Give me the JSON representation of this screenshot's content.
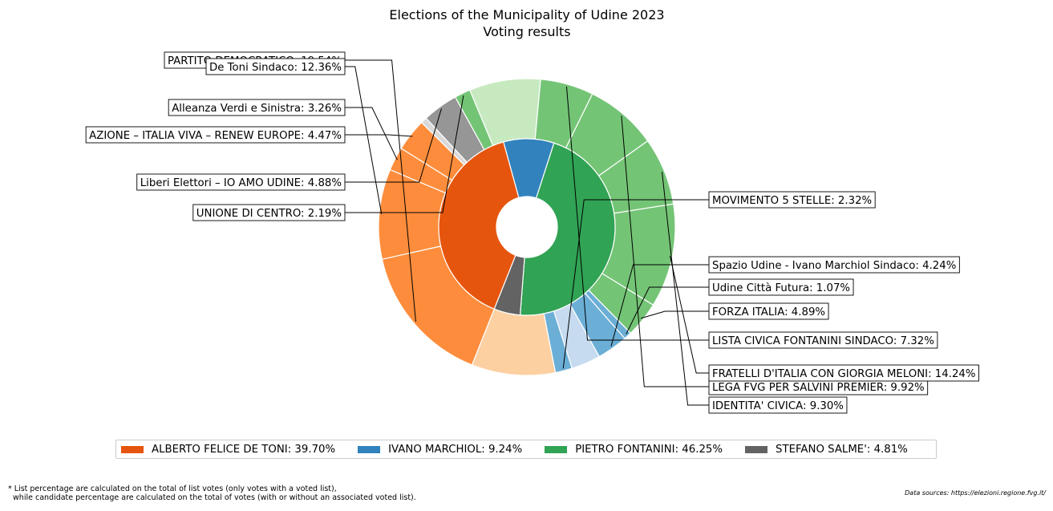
{
  "chart_data": {
    "type": "pie",
    "title": "Elections of the Municipality of Udine 2023",
    "subtitle": "Voting results",
    "inner_ring": [
      {
        "name": "ALBERTO FELICE DE TONI",
        "value": 39.7,
        "legend": "ALBERTO FELICE DE TONI: 39.70%",
        "color": "#e6550d"
      },
      {
        "name": "IVANO MARCHIOL",
        "value": 9.24,
        "legend": "IVANO MARCHIOL: 9.24%",
        "color": "#3182bd"
      },
      {
        "name": "PIETRO FONTANINI",
        "value": 46.25,
        "legend": "PIETRO FONTANINI: 46.25%",
        "color": "#31a354"
      },
      {
        "name": "STEFANO SALME'",
        "value": 4.81,
        "legend": "STEFANO SALME': 4.81%",
        "color": "#636363"
      }
    ],
    "outer_ring": [
      {
        "value": 19.54,
        "color": "#fd8d3c",
        "label": "PARTITO DEMOCRATICO: 19.54%"
      },
      {
        "value": 12.36,
        "color": "#fd8d3c",
        "label": "De Toni Sindaco: 12.36%"
      },
      {
        "value": 3.26,
        "color": "#fd8d3c",
        "label": "Alleanza Verdi e Sinistra: 3.26%"
      },
      {
        "value": 4.47,
        "color": "#fd8d3c",
        "label": "AZIONE – ITALIA VIVA – RENEW EUROPE: 4.47%"
      },
      {
        "value": 0.85,
        "color": "#d9d9d9",
        "label": ""
      },
      {
        "value": 4.88,
        "color": "#969696",
        "label": "Liberi Elettori – IO AMO UDINE: 4.88%"
      },
      {
        "value": 2.19,
        "color": "#74c476",
        "label": "UNIONE DI CENTRO: 2.19%"
      },
      {
        "value": 9.8,
        "color": "#c7e9c0",
        "label": ""
      },
      {
        "value": 7.32,
        "color": "#74c476",
        "label": "LISTA CIVICA FONTANINI SINDACO: 7.32%"
      },
      {
        "value": 9.92,
        "color": "#74c476",
        "label": "LEGA FVG PER SALVINI PREMIER: 9.92%"
      },
      {
        "value": 9.3,
        "color": "#74c476",
        "label": "IDENTITA' CIVICA: 9.30%"
      },
      {
        "value": 14.24,
        "color": "#74c476",
        "label": "FRATELLI D'ITALIA CON GIORGIA MELONI: 14.24%"
      },
      {
        "value": 4.89,
        "color": "#74c476",
        "label": "FORZA ITALIA: 4.89%"
      },
      {
        "value": 1.07,
        "color": "#6baed6",
        "label": "Udine Città Futura: 1.07%"
      },
      {
        "value": 4.24,
        "color": "#6baed6",
        "label": "Spazio Udine - Ivano Marchiol Sindaco: 4.24%"
      },
      {
        "value": 4.03,
        "color": "#c6dbef",
        "label": ""
      },
      {
        "value": 2.32,
        "color": "#6baed6",
        "label": "MOVIMENTO 5 STELLE: 2.32%"
      },
      {
        "value": 11.49,
        "color": "#fdd0a2",
        "label": ""
      }
    ]
  },
  "footnote_lines": [
    "* List percentage are calculated on the total of list votes (only votes with a voted list),",
    "  while candidate percentage are calculated on the total of votes (with or without an associated voted list)."
  ],
  "source": "Data sources: https://elezioni.regione.fvg.it/"
}
